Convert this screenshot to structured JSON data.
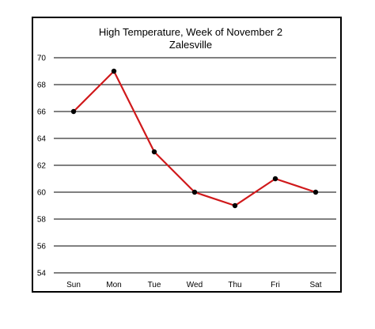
{
  "chart_data": {
    "type": "line",
    "title": "High Temperature, Week of November 2",
    "subtitle": "Zalesville",
    "xlabel": "",
    "ylabel": "",
    "categories": [
      "Sun",
      "Mon",
      "Tue",
      "Wed",
      "Thu",
      "Fri",
      "Sat"
    ],
    "series": [
      {
        "values": [
          66,
          69,
          63,
          60,
          59,
          61,
          60
        ]
      }
    ],
    "ylim": [
      54,
      70
    ],
    "yticks": [
      "54",
      "56",
      "58",
      "60",
      "62",
      "64",
      "66",
      "68",
      "70"
    ],
    "grid": true,
    "legend": "none",
    "colors": {
      "line": "#d0191b",
      "marker": "#000000",
      "grid": "#000000"
    }
  }
}
